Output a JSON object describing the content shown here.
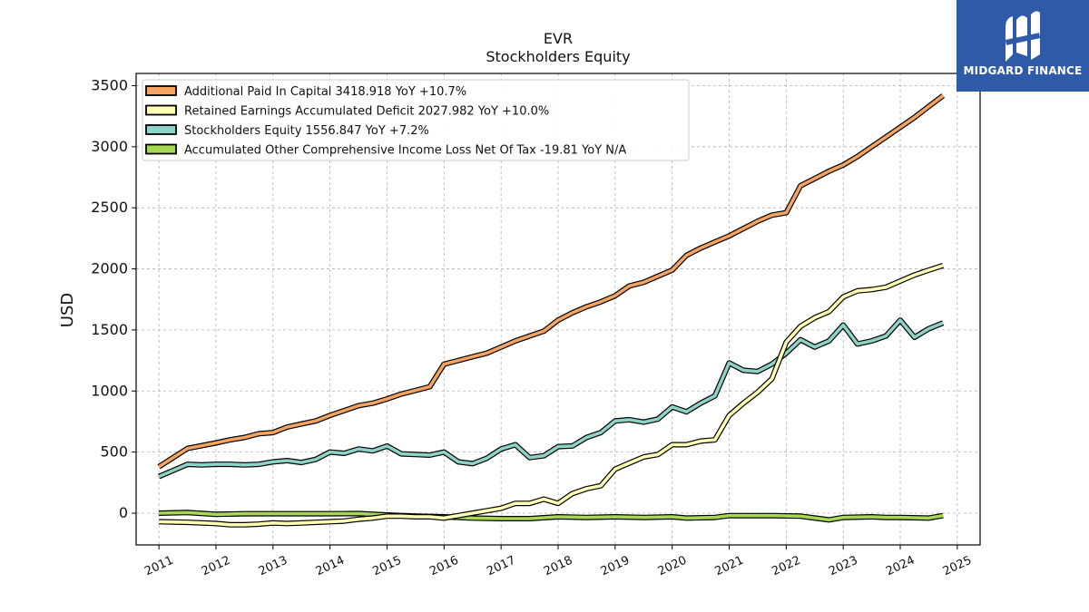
{
  "chart_data": {
    "type": "line",
    "title": "EVR",
    "subtitle": "Stockholders  Equity",
    "ylabel": "USD",
    "xlabel": "",
    "xlim": [
      2010.6,
      2025.4
    ],
    "ylim": [
      -260,
      3600
    ],
    "yticks": [
      0,
      500,
      1000,
      1500,
      2000,
      2500,
      3000,
      3500
    ],
    "xticks": [
      "2011",
      "2012",
      "2013",
      "2014",
      "2015",
      "2016",
      "2017",
      "2018",
      "2019",
      "2020",
      "2021",
      "2022",
      "2023",
      "2024",
      "2025"
    ],
    "grid": true,
    "legend_position": "top-left",
    "series": [
      {
        "name": "Additional Paid In Capital  3418.918 YoY +10.7%",
        "color": "#f4a460",
        "x": [
          2011.0,
          2011.5,
          2012.0,
          2012.25,
          2012.5,
          2012.75,
          2013.0,
          2013.25,
          2013.5,
          2013.75,
          2014.0,
          2014.25,
          2014.5,
          2014.75,
          2015.0,
          2015.25,
          2015.5,
          2015.75,
          2016.0,
          2016.25,
          2016.5,
          2016.75,
          2017.0,
          2017.25,
          2017.5,
          2017.75,
          2018.0,
          2018.25,
          2018.5,
          2018.75,
          2019.0,
          2019.25,
          2019.5,
          2019.75,
          2020.0,
          2020.25,
          2020.5,
          2020.75,
          2021.0,
          2021.25,
          2021.5,
          2021.75,
          2022.0,
          2022.25,
          2022.5,
          2022.75,
          2023.0,
          2023.25,
          2023.5,
          2023.75,
          2024.0,
          2024.25,
          2024.5,
          2024.75
        ],
        "y": [
          380,
          530,
          575,
          600,
          620,
          650,
          660,
          705,
          730,
          755,
          800,
          840,
          880,
          900,
          935,
          975,
          1005,
          1035,
          1220,
          1250,
          1280,
          1310,
          1360,
          1410,
          1450,
          1490,
          1580,
          1640,
          1690,
          1730,
          1780,
          1860,
          1890,
          1940,
          1990,
          2110,
          2170,
          2220,
          2270,
          2330,
          2390,
          2440,
          2460,
          2680,
          2740,
          2800,
          2850,
          2920,
          3000,
          3080,
          3160,
          3240,
          3330,
          3418
        ]
      },
      {
        "name": "Retained Earnings Accumulated Deficit  2027.982 YoY +10.0%",
        "color": "#ffffb3",
        "x": [
          2011.0,
          2011.5,
          2012.0,
          2012.25,
          2012.5,
          2012.75,
          2013.0,
          2013.25,
          2013.5,
          2013.75,
          2014.0,
          2014.25,
          2014.5,
          2014.75,
          2015.0,
          2015.25,
          2015.5,
          2015.75,
          2016.0,
          2016.25,
          2016.5,
          2016.75,
          2017.0,
          2017.25,
          2017.5,
          2017.75,
          2018.0,
          2018.25,
          2018.5,
          2018.75,
          2019.0,
          2019.25,
          2019.5,
          2019.75,
          2020.0,
          2020.25,
          2020.5,
          2020.75,
          2021.0,
          2021.25,
          2021.5,
          2021.75,
          2022.0,
          2022.25,
          2022.5,
          2022.75,
          2023.0,
          2023.25,
          2023.5,
          2023.75,
          2024.0,
          2024.25,
          2024.5,
          2024.75
        ],
        "y": [
          -70,
          -75,
          -85,
          -95,
          -95,
          -90,
          -80,
          -85,
          -80,
          -75,
          -70,
          -65,
          -50,
          -40,
          -25,
          -25,
          -30,
          -30,
          -40,
          -20,
          0,
          20,
          40,
          80,
          80,
          115,
          80,
          160,
          200,
          225,
          360,
          410,
          460,
          480,
          560,
          560,
          590,
          600,
          800,
          900,
          990,
          1100,
          1400,
          1530,
          1600,
          1650,
          1770,
          1820,
          1830,
          1850,
          1900,
          1950,
          1990,
          2028
        ]
      },
      {
        "name": "Stockholders Equity  1556.847 YoY +7.2%",
        "color": "#8dd3c7",
        "x": [
          2011.0,
          2011.5,
          2011.75,
          2012.0,
          2012.25,
          2012.5,
          2012.75,
          2013.0,
          2013.25,
          2013.5,
          2013.75,
          2014.0,
          2014.25,
          2014.5,
          2014.75,
          2015.0,
          2015.25,
          2015.5,
          2015.75,
          2016.0,
          2016.25,
          2016.5,
          2016.75,
          2017.0,
          2017.25,
          2017.5,
          2017.75,
          2018.0,
          2018.25,
          2018.5,
          2018.75,
          2019.0,
          2019.25,
          2019.5,
          2019.75,
          2020.0,
          2020.25,
          2020.5,
          2020.75,
          2021.0,
          2021.25,
          2021.5,
          2021.75,
          2022.0,
          2022.25,
          2022.5,
          2022.75,
          2023.0,
          2023.25,
          2023.5,
          2023.75,
          2024.0,
          2024.25,
          2024.5,
          2024.75
        ],
        "y": [
          300,
          400,
          395,
          400,
          400,
          395,
          400,
          420,
          430,
          415,
          440,
          500,
          490,
          525,
          510,
          550,
          485,
          480,
          475,
          500,
          420,
          405,
          450,
          525,
          560,
          455,
          470,
          545,
          550,
          620,
          660,
          755,
          765,
          745,
          770,
          870,
          830,
          900,
          960,
          1230,
          1170,
          1160,
          1220,
          1310,
          1420,
          1360,
          1410,
          1540,
          1385,
          1410,
          1450,
          1580,
          1440,
          1510,
          1557
        ]
      },
      {
        "name": "Accumulated Other Comprehensive Income Loss Net Of Tax  -19.81 YoY N/A",
        "color": "#a6d854",
        "x": [
          2011.0,
          2011.5,
          2012.0,
          2012.5,
          2013.0,
          2013.5,
          2014.0,
          2014.5,
          2015.0,
          2015.5,
          2016.0,
          2016.5,
          2017.0,
          2017.5,
          2018.0,
          2018.5,
          2019.0,
          2019.5,
          2020.0,
          2020.25,
          2020.75,
          2021.0,
          2021.5,
          2021.75,
          2022.25,
          2022.75,
          2023.0,
          2023.5,
          2023.75,
          2024.0,
          2024.5,
          2024.75
        ],
        "y": [
          0,
          5,
          -10,
          -5,
          -5,
          -5,
          -5,
          -3,
          -15,
          -25,
          -30,
          -40,
          -45,
          -45,
          -30,
          -35,
          -30,
          -35,
          -30,
          -40,
          -35,
          -20,
          -20,
          -20,
          -25,
          -55,
          -35,
          -30,
          -35,
          -35,
          -40,
          -20
        ]
      }
    ]
  },
  "logo": {
    "text": "MIDGARD FINANCE",
    "background": "#2f5aa8"
  }
}
